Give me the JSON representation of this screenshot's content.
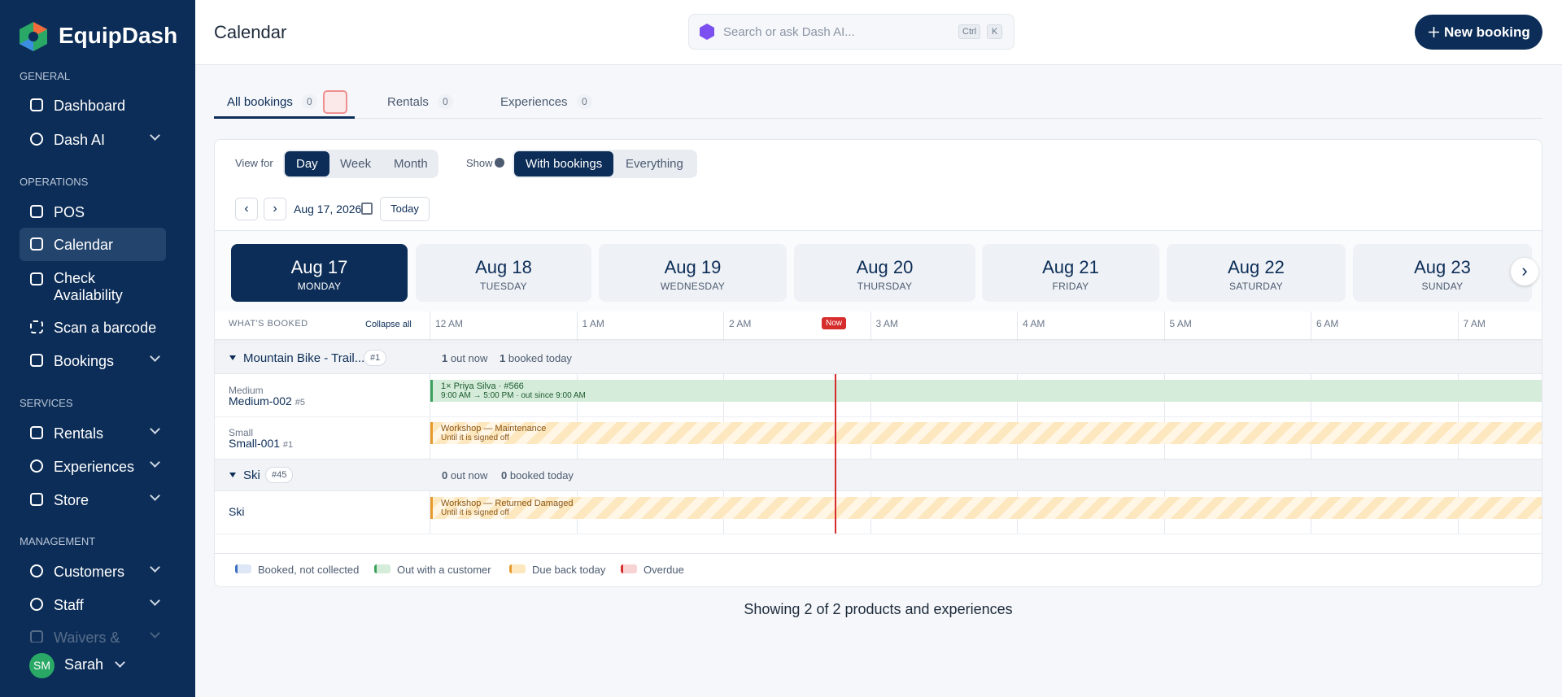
{
  "sidebar": {
    "brand": "EquipDash",
    "sections": [
      {
        "title": "GENERAL",
        "items": [
          "Dashboard",
          "Dash AI"
        ]
      },
      {
        "title": "OPERATIONS",
        "items": [
          "POS",
          "Calendar",
          "Check Availability",
          "Scan a barcode",
          "Bookings"
        ]
      },
      {
        "title": "SERVICES",
        "items": [
          "Rentals",
          "Experiences",
          "Store"
        ]
      },
      {
        "title": "MANAGEMENT",
        "items": [
          "Customers",
          "Staff",
          "Waivers &"
        ]
      }
    ],
    "user": {
      "initials": "SM",
      "name": "Sarah"
    }
  },
  "header": {
    "title": "Calendar",
    "search_placeholder": "Search or ask Dash AI...",
    "shortcut": [
      "Ctrl",
      "K"
    ],
    "new_button": "New booking"
  },
  "tabs": [
    {
      "label": "All bookings",
      "count": 0
    },
    {
      "label": "Rentals",
      "count": 0
    },
    {
      "label": "Experiences",
      "count": 0
    }
  ],
  "controls": {
    "view_label": "View for",
    "views": [
      "Day",
      "Week",
      "Month"
    ],
    "show_label": "Show",
    "show_options": [
      "With bookings",
      "Everything"
    ],
    "date": "Aug 17, 2026",
    "today": "Today"
  },
  "days": [
    {
      "date": "Aug 17",
      "weekday": "MONDAY"
    },
    {
      "date": "Aug 18",
      "weekday": "TUESDAY"
    },
    {
      "date": "Aug 19",
      "weekday": "WEDNESDAY"
    },
    {
      "date": "Aug 20",
      "weekday": "THURSDAY"
    },
    {
      "date": "Aug 21",
      "weekday": "FRIDAY"
    },
    {
      "date": "Aug 22",
      "weekday": "SATURDAY"
    },
    {
      "date": "Aug 23",
      "weekday": "SUNDAY"
    }
  ],
  "timeline": {
    "column_title": "WHAT'S BOOKED",
    "collapse": "Collapse all",
    "hours": [
      "12 AM",
      "1 AM",
      "2 AM",
      "3 AM",
      "4 AM",
      "5 AM",
      "6 AM",
      "7 AM"
    ],
    "now": "Now"
  },
  "groups": [
    {
      "name": "Mountain Bike - Trail...",
      "tag": "#1",
      "out_now": 1,
      "out_label": "out now",
      "booked_today": 1,
      "booked_label": "booked today",
      "rows": [
        {
          "size": "Medium",
          "item": "Medium-002",
          "tag": "#5",
          "booking": "1× Priya Silva · #566",
          "detail": "9:00 AM → 5:00 PM · out since 9:00 AM"
        },
        {
          "size": "Small",
          "item": "Small-001",
          "tag": "#1",
          "booking": "Workshop — Maintenance",
          "detail": "Until it is signed off"
        }
      ]
    },
    {
      "name": "Ski",
      "tag": "#45",
      "out_now": 0,
      "out_label": "out now",
      "booked_today": 0,
      "booked_label": "booked today",
      "rows": [
        {
          "item": "Ski",
          "booking": "Workshop — Returned Damaged",
          "detail": "Until it is signed off"
        }
      ]
    }
  ],
  "legend": [
    "Booked, not collected",
    "Out with a customer",
    "Due back today",
    "Overdue"
  ],
  "footer": "Showing 2 of 2 products and experiences"
}
